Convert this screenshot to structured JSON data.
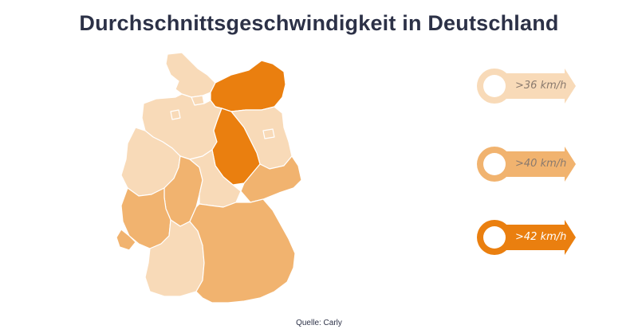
{
  "title": "Durchschnittsgeschwindigkeit in Deutschland",
  "source": "Quelle: Carly",
  "colors": {
    "low": "#f8dab8",
    "mid": "#f1b36f",
    "high": "#ea7f0f"
  },
  "legend": [
    {
      "label": ">36 km/h",
      "level": "low"
    },
    {
      "label": ">40 km/h",
      "level": "mid"
    },
    {
      "label": ">42 km/h",
      "level": "high"
    }
  ],
  "states": [
    {
      "name": "Schleswig-Holstein",
      "level": "low"
    },
    {
      "name": "Hamburg",
      "level": "low"
    },
    {
      "name": "Mecklenburg-Vorpommern",
      "level": "high"
    },
    {
      "name": "Niedersachsen",
      "level": "low"
    },
    {
      "name": "Bremen",
      "level": "low"
    },
    {
      "name": "Brandenburg",
      "level": "low"
    },
    {
      "name": "Berlin",
      "level": "low"
    },
    {
      "name": "Sachsen-Anhalt",
      "level": "high"
    },
    {
      "name": "Nordrhein-Westfalen",
      "level": "low"
    },
    {
      "name": "Hessen",
      "level": "mid"
    },
    {
      "name": "Thüringen",
      "level": "low"
    },
    {
      "name": "Sachsen",
      "level": "mid"
    },
    {
      "name": "Rheinland-Pfalz",
      "level": "mid"
    },
    {
      "name": "Saarland",
      "level": "mid"
    },
    {
      "name": "Baden-Württemberg",
      "level": "low"
    },
    {
      "name": "Bayern",
      "level": "mid"
    }
  ]
}
